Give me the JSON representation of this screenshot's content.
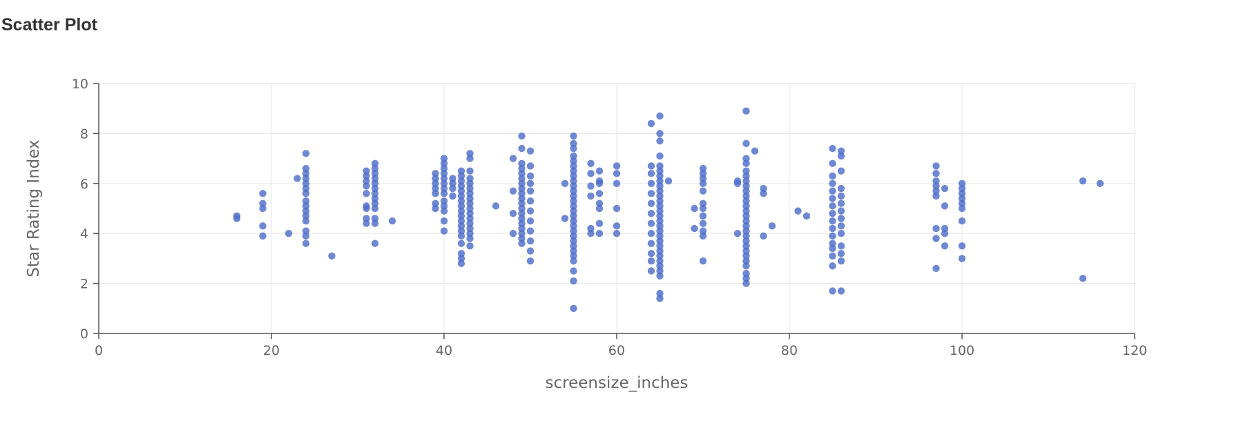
{
  "chart_data": {
    "type": "scatter",
    "title": "Scatter Plot",
    "xlabel": "screensize_inches",
    "ylabel": "Star Rating Index",
    "xlim": [
      0,
      120
    ],
    "ylim": [
      0,
      10
    ],
    "xticks": [
      0,
      20,
      40,
      60,
      80,
      100,
      120
    ],
    "yticks": [
      0,
      2,
      4,
      6,
      8,
      10
    ],
    "grid": true,
    "point_color": "#4e6ec9",
    "clusters": [
      {
        "x": 16,
        "y": [
          4.6,
          4.7
        ]
      },
      {
        "x": 19,
        "y": [
          3.9,
          4.3,
          5.0,
          5.2,
          5.6
        ]
      },
      {
        "x": 22,
        "y": [
          4.0
        ]
      },
      {
        "x": 23,
        "y": [
          6.2
        ]
      },
      {
        "x": 24,
        "y": [
          3.6,
          3.9,
          4.1,
          4.5,
          4.7,
          4.9,
          5.1,
          5.3,
          5.6,
          5.8,
          6.0,
          6.2,
          6.4,
          6.6,
          7.2
        ]
      },
      {
        "x": 27,
        "y": [
          3.1
        ]
      },
      {
        "x": 31,
        "y": [
          4.4,
          4.6,
          5.0,
          5.1,
          5.6,
          5.9,
          6.1,
          6.3,
          6.5
        ]
      },
      {
        "x": 32,
        "y": [
          3.6,
          4.4,
          4.6,
          5.0,
          5.2,
          5.4,
          5.6,
          5.8,
          6.0,
          6.2,
          6.4,
          6.6,
          6.8
        ]
      },
      {
        "x": 34,
        "y": [
          4.5
        ]
      },
      {
        "x": 39,
        "y": [
          5.0,
          5.2,
          5.6,
          5.8,
          6.0,
          6.2,
          6.4
        ]
      },
      {
        "x": 40,
        "y": [
          4.1,
          4.5,
          4.9,
          5.1,
          5.3,
          5.6,
          5.8,
          6.0,
          6.2,
          6.4,
          6.6,
          6.8,
          7.0
        ]
      },
      {
        "x": 41,
        "y": [
          5.5,
          5.8,
          6.0,
          6.2
        ]
      },
      {
        "x": 42,
        "y": [
          2.8,
          3.0,
          3.2,
          3.6,
          3.9,
          4.1,
          4.3,
          4.5,
          4.7,
          4.9,
          5.1,
          5.3,
          5.5,
          5.7,
          5.9,
          6.1,
          6.3,
          6.5
        ]
      },
      {
        "x": 43,
        "y": [
          3.5,
          3.8,
          4.0,
          4.2,
          4.4,
          4.6,
          4.8,
          5.0,
          5.2,
          5.4,
          5.6,
          5.8,
          6.0,
          6.2,
          6.5,
          7.0,
          7.2
        ]
      },
      {
        "x": 46,
        "y": [
          5.1
        ]
      },
      {
        "x": 48,
        "y": [
          4.0,
          4.8,
          5.7,
          7.0
        ]
      },
      {
        "x": 49,
        "y": [
          3.6,
          3.8,
          4.0,
          4.2,
          4.4,
          4.6,
          4.8,
          5.0,
          5.2,
          5.4,
          5.6,
          5.8,
          6.0,
          6.2,
          6.4,
          6.6,
          6.8,
          7.4,
          7.9
        ]
      },
      {
        "x": 50,
        "y": [
          2.9,
          3.3,
          3.7,
          4.1,
          4.5,
          4.9,
          5.3,
          5.7,
          6.0,
          6.3,
          6.7,
          7.3
        ]
      },
      {
        "x": 54,
        "y": [
          4.6,
          6.0
        ]
      },
      {
        "x": 55,
        "y": [
          1.0,
          2.1,
          2.5,
          2.9,
          3.1,
          3.3,
          3.5,
          3.7,
          3.9,
          4.1,
          4.3,
          4.5,
          4.7,
          4.9,
          5.1,
          5.3,
          5.5,
          5.7,
          5.9,
          6.1,
          6.3,
          6.5,
          6.7,
          6.9,
          7.1,
          7.4,
          7.6,
          7.9
        ]
      },
      {
        "x": 57,
        "y": [
          4.0,
          4.2,
          5.5,
          5.9,
          6.4,
          6.8
        ]
      },
      {
        "x": 58,
        "y": [
          4.0,
          4.4,
          5.0,
          5.2,
          5.6,
          6.0,
          6.1,
          6.5
        ]
      },
      {
        "x": 60,
        "y": [
          4.0,
          4.3,
          5.0,
          6.0,
          6.4,
          6.7
        ]
      },
      {
        "x": 64,
        "y": [
          2.5,
          2.9,
          3.2,
          3.6,
          4.0,
          4.4,
          4.8,
          5.2,
          5.6,
          6.0,
          6.4,
          6.7,
          8.4
        ]
      },
      {
        "x": 65,
        "y": [
          1.4,
          1.6,
          2.3,
          2.5,
          2.7,
          2.9,
          3.1,
          3.3,
          3.5,
          3.7,
          3.9,
          4.1,
          4.3,
          4.5,
          4.7,
          4.9,
          5.1,
          5.3,
          5.5,
          5.7,
          5.9,
          6.1,
          6.3,
          6.5,
          6.7,
          7.1,
          7.7,
          8.0,
          8.7
        ]
      },
      {
        "x": 66,
        "y": [
          6.1
        ]
      },
      {
        "x": 69,
        "y": [
          4.2,
          5.0
        ]
      },
      {
        "x": 70,
        "y": [
          2.9,
          3.9,
          4.1,
          4.4,
          4.7,
          5.0,
          5.2,
          5.7,
          6.0,
          6.2,
          6.4,
          6.6
        ]
      },
      {
        "x": 74,
        "y": [
          4.0,
          6.0,
          6.1
        ]
      },
      {
        "x": 75,
        "y": [
          2.0,
          2.2,
          2.4,
          2.7,
          2.9,
          3.1,
          3.3,
          3.5,
          3.7,
          3.9,
          4.1,
          4.3,
          4.5,
          4.7,
          4.9,
          5.1,
          5.3,
          5.5,
          5.7,
          5.9,
          6.1,
          6.3,
          6.5,
          6.8,
          7.0,
          7.6,
          8.9
        ]
      },
      {
        "x": 76,
        "y": [
          7.3
        ]
      },
      {
        "x": 77,
        "y": [
          3.9,
          5.6,
          5.8
        ]
      },
      {
        "x": 78,
        "y": [
          4.3
        ]
      },
      {
        "x": 81,
        "y": [
          4.9
        ]
      },
      {
        "x": 82,
        "y": [
          4.7
        ]
      },
      {
        "x": 85,
        "y": [
          1.7,
          2.7,
          3.1,
          3.4,
          3.6,
          3.9,
          4.2,
          4.5,
          4.8,
          5.1,
          5.4,
          5.7,
          6.0,
          6.3,
          6.8,
          7.4
        ]
      },
      {
        "x": 86,
        "y": [
          1.7,
          2.9,
          3.2,
          3.5,
          4.0,
          4.3,
          4.6,
          4.9,
          5.2,
          5.5,
          5.8,
          6.5,
          7.1,
          7.3
        ]
      },
      {
        "x": 97,
        "y": [
          2.6,
          3.8,
          4.2,
          5.5,
          5.7,
          5.9,
          6.1,
          6.4,
          6.7
        ]
      },
      {
        "x": 98,
        "y": [
          3.5,
          4.0,
          4.2,
          5.1,
          5.8
        ]
      },
      {
        "x": 100,
        "y": [
          3.0,
          3.5,
          4.5,
          5.0,
          5.2,
          5.4,
          5.6,
          5.8,
          6.0
        ]
      },
      {
        "x": 114,
        "y": [
          2.2,
          6.1
        ]
      },
      {
        "x": 116,
        "y": [
          6.0
        ]
      }
    ]
  }
}
